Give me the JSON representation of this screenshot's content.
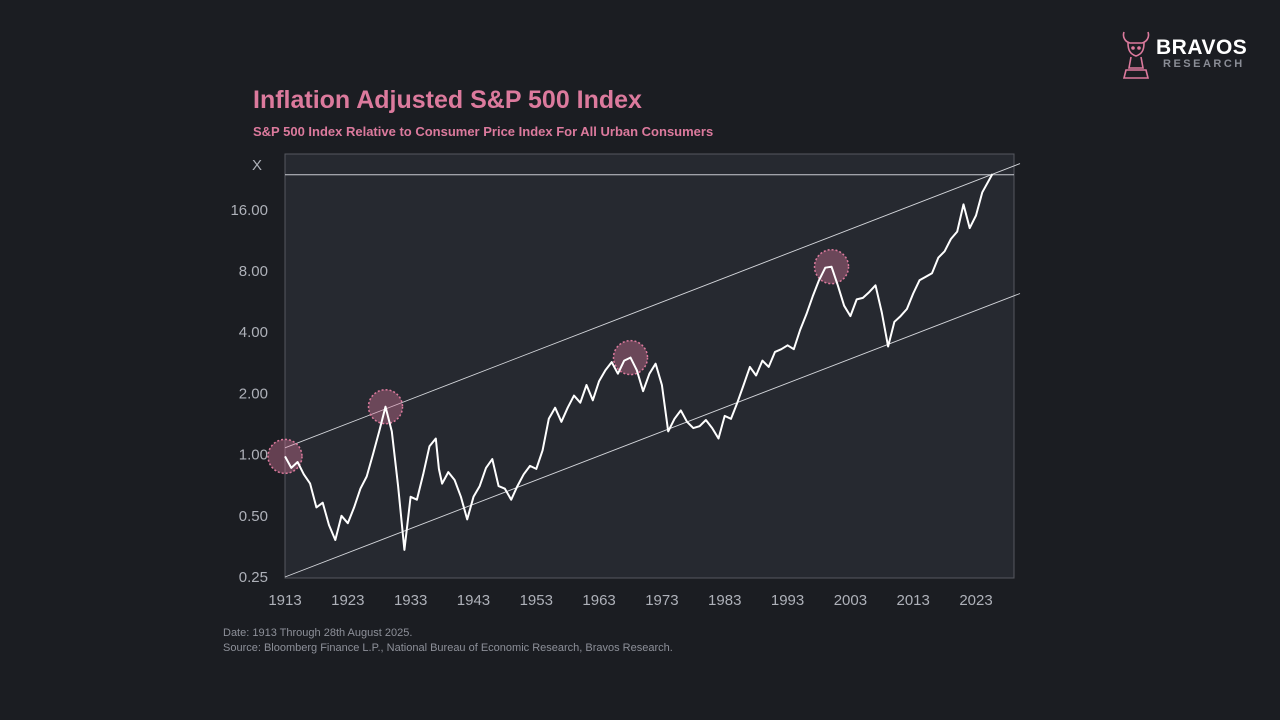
{
  "brand": {
    "name": "BRAVOS",
    "subtitle": "RESEARCH",
    "accent": "#dc7a9d"
  },
  "chart_data": {
    "type": "line",
    "title": "Inflation Adjusted S&P 500 Index",
    "subtitle": "S&P 500 Index Relative to Consumer Price Index For All Urban Consumers",
    "ylabel": "X",
    "xlabel": "",
    "yscale": "log2",
    "ylim": [
      0.25,
      32
    ],
    "xlim": [
      1913,
      2028
    ],
    "y_ticks": [
      0.25,
      0.5,
      1,
      2,
      4,
      8,
      16
    ],
    "y_tick_labels": [
      "0.25",
      "0.50",
      "1.00",
      "2.00",
      "4.00",
      "8.00",
      "16.00"
    ],
    "x_ticks": [
      1913,
      1923,
      1933,
      1943,
      1953,
      1963,
      1973,
      1983,
      1993,
      2003,
      2013,
      2023
    ],
    "x_tick_labels": [
      "1913",
      "1923",
      "1933",
      "1943",
      "1953",
      "1963",
      "1973",
      "1983",
      "1993",
      "2003",
      "2013",
      "2023"
    ],
    "series": [
      {
        "name": "Inflation Adjusted S&P 500",
        "color": "#ffffff",
        "points": [
          [
            1913.0,
            0.98
          ],
          [
            1914.0,
            0.86
          ],
          [
            1915.0,
            0.92
          ],
          [
            1916.0,
            0.8
          ],
          [
            1917.0,
            0.72
          ],
          [
            1918.0,
            0.55
          ],
          [
            1919.0,
            0.58
          ],
          [
            1920.0,
            0.45
          ],
          [
            1921.0,
            0.38
          ],
          [
            1922.0,
            0.5
          ],
          [
            1923.0,
            0.46
          ],
          [
            1924.0,
            0.55
          ],
          [
            1925.0,
            0.68
          ],
          [
            1926.0,
            0.78
          ],
          [
            1927.0,
            1.0
          ],
          [
            1928.0,
            1.3
          ],
          [
            1929.0,
            1.72
          ],
          [
            1930.0,
            1.3
          ],
          [
            1931.0,
            0.7
          ],
          [
            1932.0,
            0.34
          ],
          [
            1933.0,
            0.62
          ],
          [
            1934.0,
            0.6
          ],
          [
            1935.0,
            0.8
          ],
          [
            1936.0,
            1.1
          ],
          [
            1937.0,
            1.2
          ],
          [
            1937.5,
            0.85
          ],
          [
            1938.0,
            0.72
          ],
          [
            1939.0,
            0.82
          ],
          [
            1940.0,
            0.75
          ],
          [
            1941.0,
            0.62
          ],
          [
            1942.0,
            0.48
          ],
          [
            1943.0,
            0.62
          ],
          [
            1944.0,
            0.7
          ],
          [
            1945.0,
            0.86
          ],
          [
            1946.0,
            0.95
          ],
          [
            1947.0,
            0.7
          ],
          [
            1948.0,
            0.68
          ],
          [
            1949.0,
            0.6
          ],
          [
            1950.0,
            0.7
          ],
          [
            1951.0,
            0.8
          ],
          [
            1952.0,
            0.88
          ],
          [
            1953.0,
            0.85
          ],
          [
            1954.0,
            1.05
          ],
          [
            1955.0,
            1.5
          ],
          [
            1956.0,
            1.7
          ],
          [
            1957.0,
            1.45
          ],
          [
            1958.0,
            1.7
          ],
          [
            1959.0,
            1.95
          ],
          [
            1960.0,
            1.8
          ],
          [
            1961.0,
            2.2
          ],
          [
            1962.0,
            1.85
          ],
          [
            1963.0,
            2.3
          ],
          [
            1964.0,
            2.6
          ],
          [
            1965.0,
            2.85
          ],
          [
            1966.0,
            2.5
          ],
          [
            1967.0,
            2.9
          ],
          [
            1968.0,
            3.0
          ],
          [
            1969.0,
            2.6
          ],
          [
            1970.0,
            2.05
          ],
          [
            1971.0,
            2.5
          ],
          [
            1972.0,
            2.8
          ],
          [
            1973.0,
            2.2
          ],
          [
            1974.0,
            1.3
          ],
          [
            1975.0,
            1.5
          ],
          [
            1976.0,
            1.65
          ],
          [
            1977.0,
            1.45
          ],
          [
            1978.0,
            1.35
          ],
          [
            1979.0,
            1.38
          ],
          [
            1980.0,
            1.48
          ],
          [
            1981.0,
            1.35
          ],
          [
            1982.0,
            1.2
          ],
          [
            1983.0,
            1.55
          ],
          [
            1984.0,
            1.5
          ],
          [
            1985.0,
            1.8
          ],
          [
            1986.0,
            2.2
          ],
          [
            1987.0,
            2.7
          ],
          [
            1988.0,
            2.45
          ],
          [
            1989.0,
            2.9
          ],
          [
            1990.0,
            2.7
          ],
          [
            1991.0,
            3.2
          ],
          [
            1992.0,
            3.3
          ],
          [
            1993.0,
            3.45
          ],
          [
            1994.0,
            3.3
          ],
          [
            1995.0,
            4.1
          ],
          [
            1996.0,
            4.9
          ],
          [
            1997.0,
            6.0
          ],
          [
            1998.0,
            7.2
          ],
          [
            1999.0,
            8.3
          ],
          [
            2000.0,
            8.4
          ],
          [
            2001.0,
            6.8
          ],
          [
            2002.0,
            5.4
          ],
          [
            2003.0,
            4.8
          ],
          [
            2004.0,
            5.8
          ],
          [
            2005.0,
            5.9
          ],
          [
            2006.0,
            6.3
          ],
          [
            2007.0,
            6.8
          ],
          [
            2008.0,
            5.0
          ],
          [
            2009.0,
            3.4
          ],
          [
            2010.0,
            4.5
          ],
          [
            2011.0,
            4.8
          ],
          [
            2012.0,
            5.2
          ],
          [
            2013.0,
            6.2
          ],
          [
            2014.0,
            7.2
          ],
          [
            2015.0,
            7.5
          ],
          [
            2016.0,
            7.8
          ],
          [
            2017.0,
            9.3
          ],
          [
            2018.0,
            10.0
          ],
          [
            2019.0,
            11.5
          ],
          [
            2020.0,
            12.5
          ],
          [
            2021.0,
            17.0
          ],
          [
            2022.0,
            13.0
          ],
          [
            2023.0,
            15.0
          ],
          [
            2024.0,
            19.5
          ],
          [
            2025.6,
            24.0
          ]
        ]
      }
    ],
    "channel_lines": [
      {
        "name": "upper-trend",
        "points": [
          [
            1913,
            1.08
          ],
          [
            2030,
            27.0
          ]
        ]
      },
      {
        "name": "lower-trend",
        "points": [
          [
            1913,
            0.25
          ],
          [
            2030,
            6.2
          ]
        ]
      }
    ],
    "horizontal_line": {
      "name": "current-level",
      "y": 23.8
    },
    "highlighted_peaks": [
      {
        "year": 1913,
        "value": 0.98
      },
      {
        "year": 1929,
        "value": 1.72
      },
      {
        "year": 1968,
        "value": 3.0
      },
      {
        "year": 2000,
        "value": 8.4
      }
    ],
    "annotations": []
  },
  "footnotes": {
    "date": "Date: 1913 Through 28th August 2025.",
    "source": "Source: Bloomberg Finance L.P., National Bureau of Economic Research, Bravos Research."
  }
}
